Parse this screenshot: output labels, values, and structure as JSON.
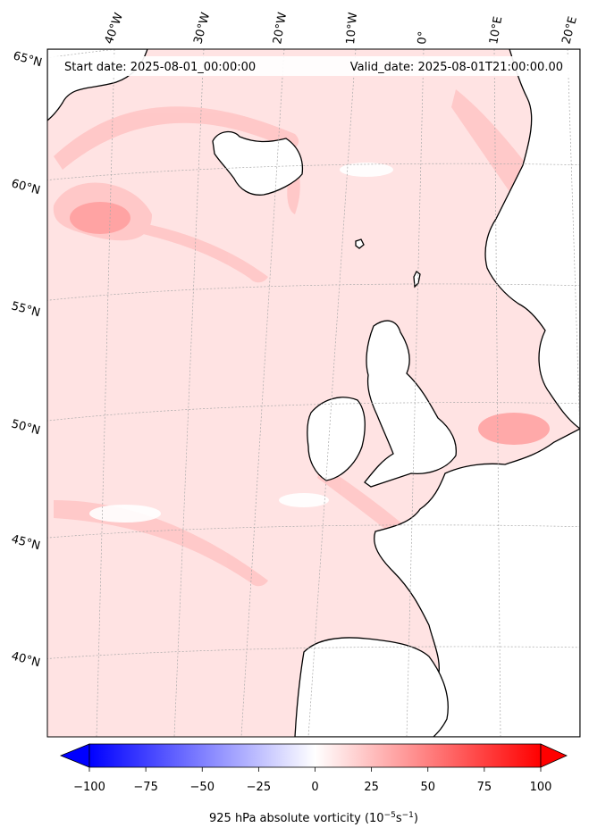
{
  "header": {
    "start_date": "Start date: 2025-08-01_00:00:00",
    "valid_date": "Valid_date: 2025-08-01T21:00:00.00"
  },
  "longitude_labels": [
    "40°W",
    "30°W",
    "20°W",
    "10°W",
    "0°",
    "10°E",
    "20°E"
  ],
  "latitude_labels": [
    "65°N",
    "60°N",
    "55°N",
    "50°N",
    "45°N",
    "40°N"
  ],
  "colorbar": {
    "min": -100,
    "max": 100,
    "ticks": [
      "−100",
      "−75",
      "−50",
      "−25",
      "0",
      "25",
      "50",
      "75",
      "100"
    ],
    "label": "925 hPa absolute vorticity (10",
    "label_exp1": "−5",
    "label_mid": "s",
    "label_exp2": "−1",
    "label_end": ")",
    "low_color": "#0000ff",
    "mid_color": "#ffffff",
    "high_color": "#ff0000"
  },
  "colors": {
    "land_fill": "#ffffff",
    "field_base": "#ffe6e6",
    "field_strong": "#ff9a9a",
    "coastline": "#000000",
    "grid": "#b0b0b0"
  }
}
